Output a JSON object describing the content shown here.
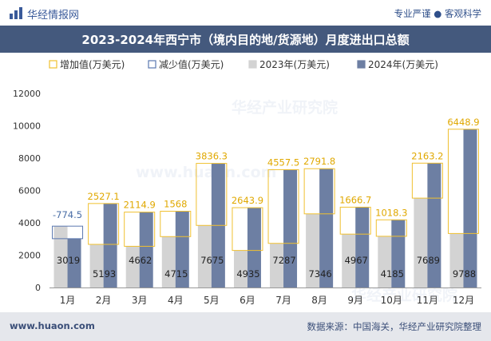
{
  "header": {
    "brand": "华经情报网",
    "slogan": "专业严谨 ● 客观科学"
  },
  "title": "2023-2024年西宁市（境内目的地/货源地）月度进出口总额",
  "footer": {
    "site": "www.huaon.com",
    "source": "数据来源：中国海关，华经产业研究院整理"
  },
  "watermarks": [
    "华经产业研究院",
    "www.huaon.com"
  ],
  "colors": {
    "increase": "#f0c030",
    "decrease": "#5b78b0",
    "y2023": "#d3d3d3",
    "y2024": "#6d7fa3",
    "label_increase": "#e0a800",
    "label_decrease": "#4a6ea6"
  },
  "chart_data": {
    "type": "bar",
    "categories": [
      "1月",
      "2月",
      "3月",
      "4月",
      "5月",
      "6月",
      "7月",
      "8月",
      "9月",
      "10月",
      "11月",
      "12月"
    ],
    "series": [
      {
        "name": "2023年(万美元)",
        "values": [
          3793.5,
          2665.9,
          2547.1,
          3147,
          3838.7,
          2291.1,
          2729.5,
          4554.2,
          3300.3,
          3166.8,
          5525.8,
          3339.1
        ]
      },
      {
        "name": "2024年(万美元)",
        "values": [
          3019,
          5193,
          4662,
          4715,
          7675,
          4935,
          7287,
          7346,
          4967,
          4185,
          7689,
          9788
        ]
      },
      {
        "name": "增加值(万美元)",
        "values": [
          null,
          2527.1,
          2114.9,
          1568,
          3836.3,
          2643.9,
          4557.5,
          2791.8,
          1666.7,
          1018.3,
          2163.2,
          6448.9
        ]
      },
      {
        "name": "减少值(万美元)",
        "values": [
          -774.5,
          null,
          null,
          null,
          null,
          null,
          null,
          null,
          null,
          null,
          null,
          null
        ]
      }
    ],
    "legend": [
      "增加值(万美元)",
      "减少值(万美元)",
      "2023年(万美元)",
      "2024年(万美元)"
    ],
    "yticks": [
      "0",
      "2000",
      "4000",
      "6000",
      "8000",
      "10000",
      "12000"
    ],
    "ylim": [
      0,
      12000
    ],
    "legend_position": "top",
    "grid": false
  }
}
